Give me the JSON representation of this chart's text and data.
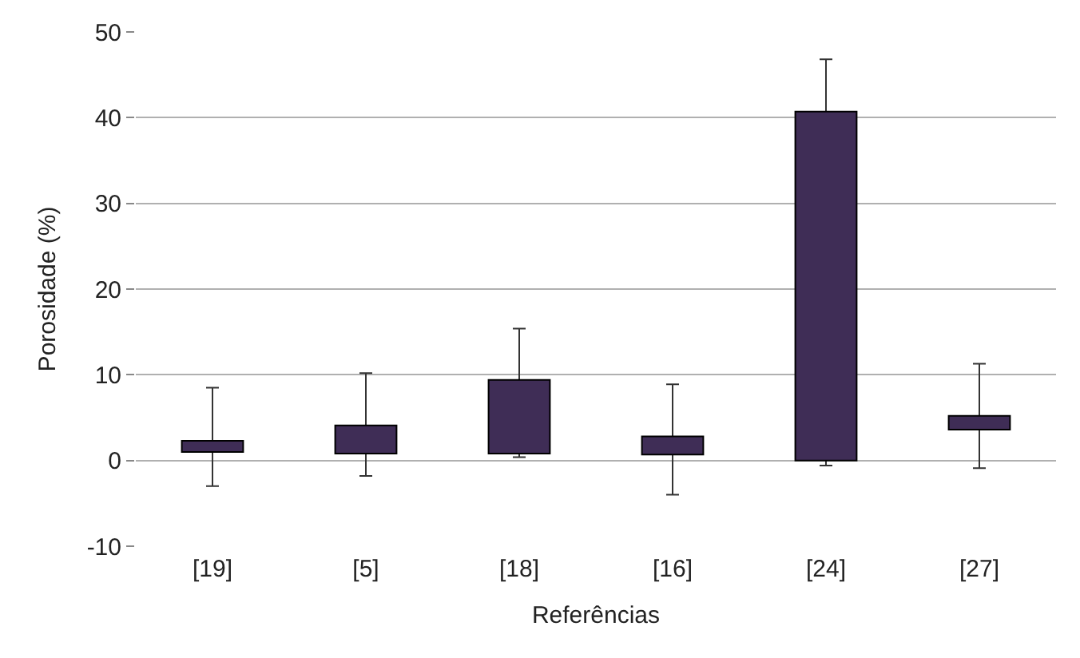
{
  "chart_data": {
    "type": "bar",
    "xlabel": "Referências",
    "ylabel": "Porosidade (%)",
    "categories": [
      "[19]",
      "[5]",
      "[18]",
      "[16]",
      "[24]",
      "[27]"
    ],
    "base": [
      1.0,
      0.8,
      0.8,
      0.7,
      0,
      3.6
    ],
    "values": [
      1.3,
      3.3,
      8.6,
      2.1,
      40.7,
      1.6
    ],
    "errors": [
      [
        -3,
        8.5
      ],
      [
        -1.8,
        10.2
      ],
      [
        0.4,
        15.4
      ],
      [
        -4,
        8.9
      ],
      [
        -0.6,
        46.8
      ],
      [
        -0.9,
        11.3
      ]
    ],
    "color": "#3f2d56",
    "ylim": [
      -10,
      50
    ],
    "yticks": [
      -10,
      0,
      10,
      20,
      30,
      40,
      50
    ],
    "grid": "y"
  }
}
